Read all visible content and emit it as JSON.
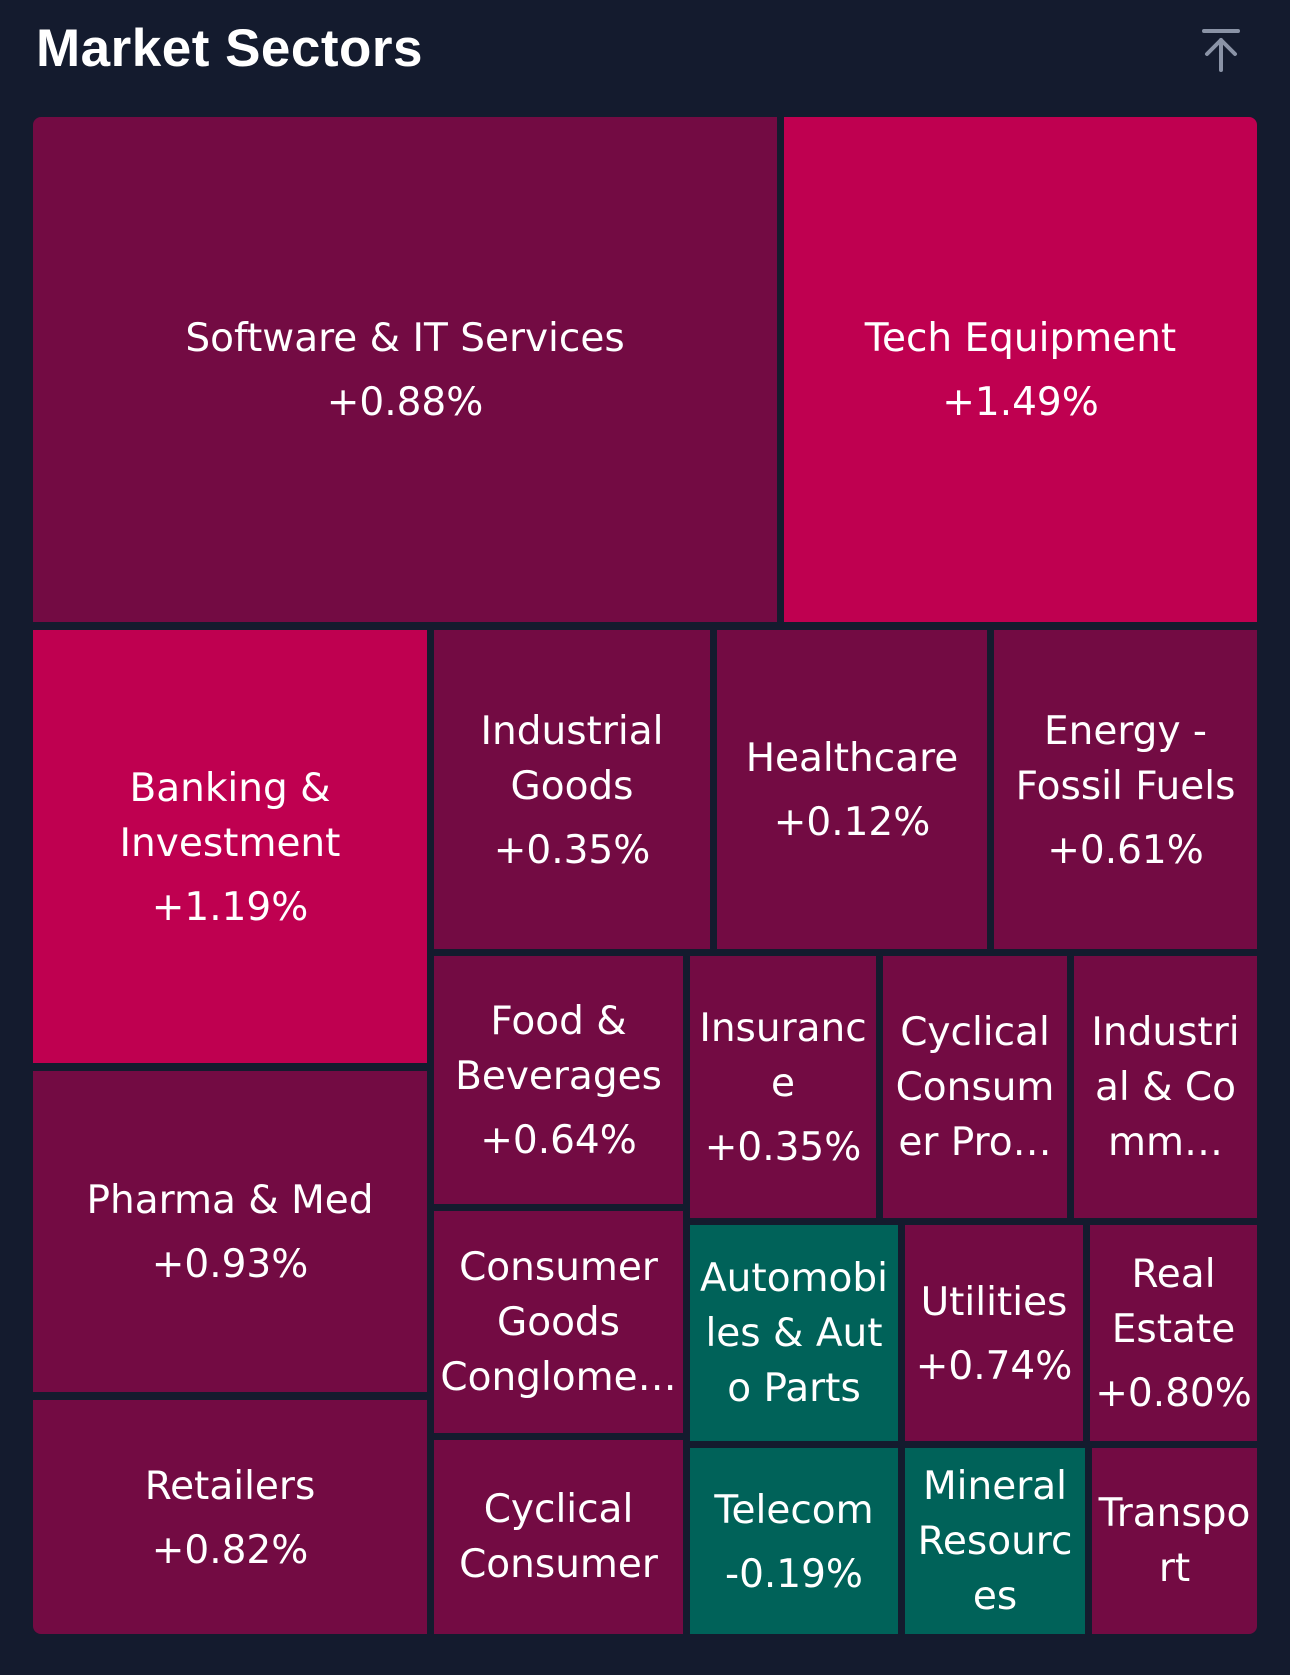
{
  "header": {
    "title": "Market Sectors",
    "scroll_top_icon": "arrow-up-to-line-icon"
  },
  "colors": {
    "background": "#141b2e",
    "gain_strong": "#bf0050",
    "gain_moderate": "#730b43",
    "loss": "#006259"
  },
  "sectors": [
    {
      "name": "Software & IT Services",
      "change": "+0.88%"
    },
    {
      "name": "Tech Equipment",
      "change": "+1.49%"
    },
    {
      "name": "Banking & Investment",
      "change": "+1.19%"
    },
    {
      "name": "Industrial Goods",
      "change": "+0.35%"
    },
    {
      "name": "Healthcare",
      "change": "+0.12%"
    },
    {
      "name": "Energy - Fossil Fuels",
      "change": "+0.61%"
    },
    {
      "name": "Pharma & Med",
      "change": "+0.93%"
    },
    {
      "name": "Food & Beverages",
      "change": "+0.64%"
    },
    {
      "name": "Insurance",
      "change": "+0.35%"
    },
    {
      "name": "Cyclical Consumer Pro…",
      "change": ""
    },
    {
      "name": "Industrial & Comm…",
      "change": ""
    },
    {
      "name": "Consumer Goods Conglome…",
      "change": ""
    },
    {
      "name": "Automobiles & Auto Parts",
      "change": ""
    },
    {
      "name": "Utilities",
      "change": "+0.74%"
    },
    {
      "name": "Real Estate",
      "change": "+0.80%"
    },
    {
      "name": "Retailers",
      "change": "+0.82%"
    },
    {
      "name": "Cyclical Consumer",
      "change": ""
    },
    {
      "name": "Telecom",
      "change": "-0.19%"
    },
    {
      "name": "Mineral Resources",
      "change": ""
    },
    {
      "name": "Transport",
      "change": ""
    }
  ]
}
